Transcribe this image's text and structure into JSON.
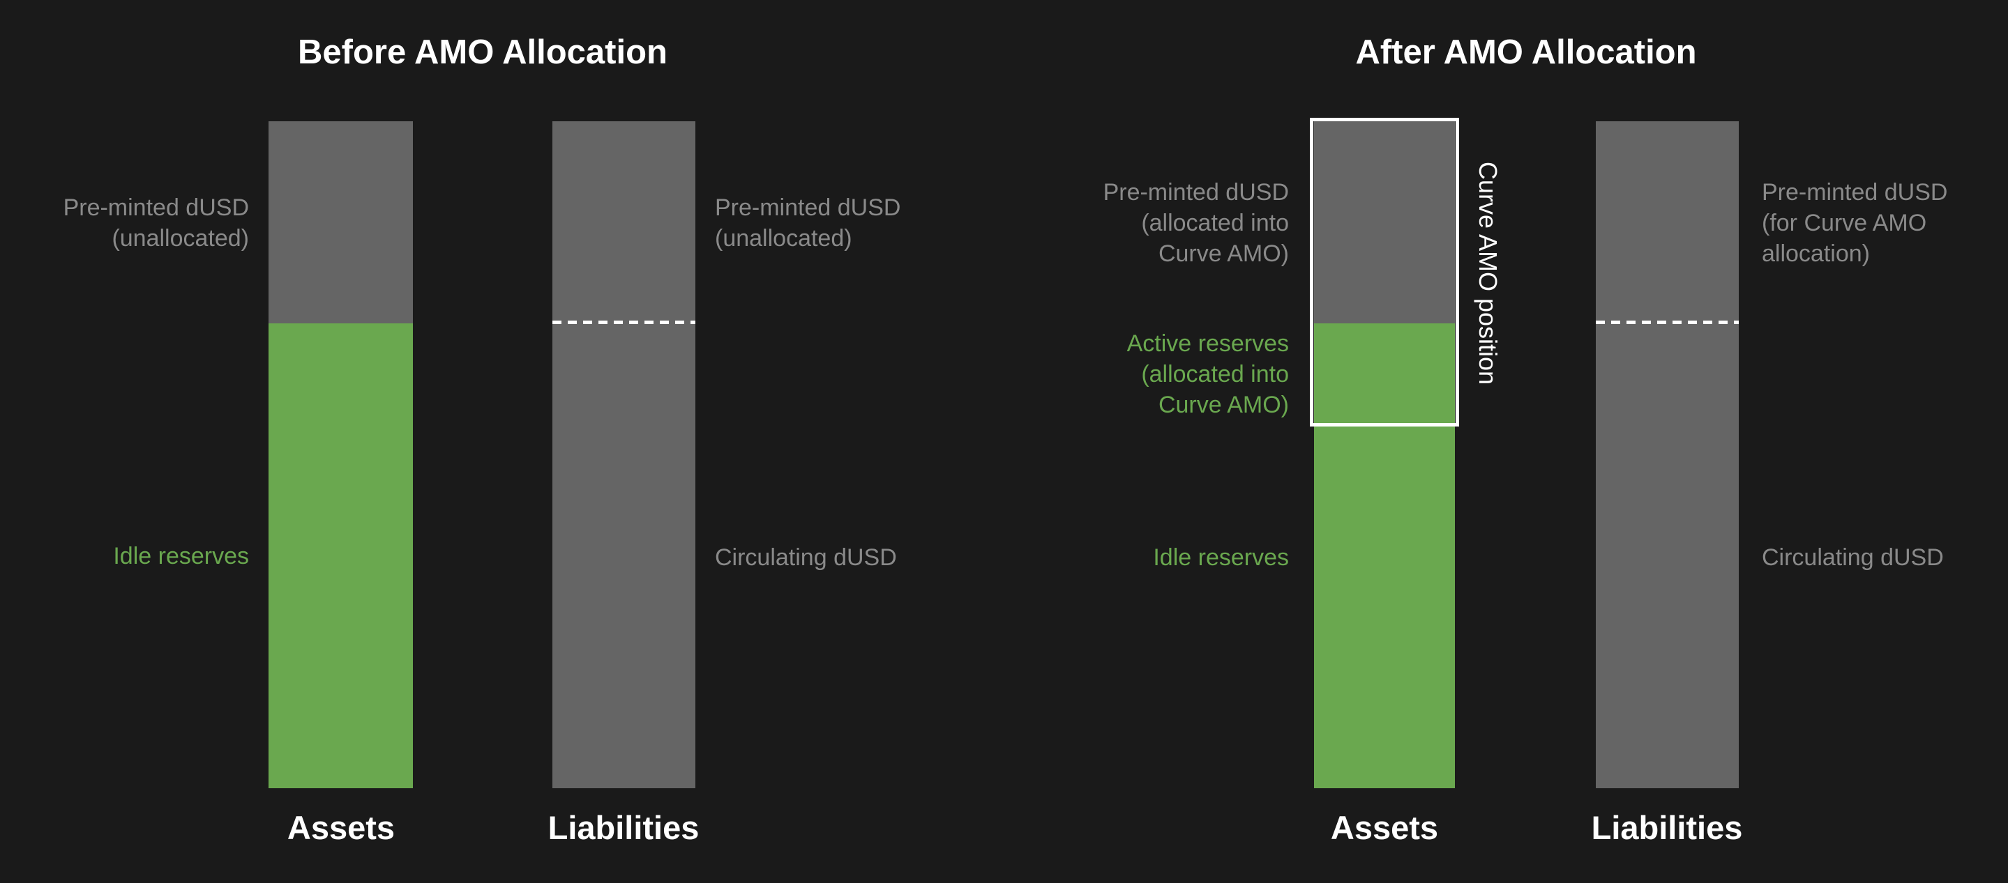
{
  "colors": {
    "background": "#1a1a1a",
    "bar_gray": "#656565",
    "bar_green": "#6aa84f",
    "muted_label_text": "#8a8a8a",
    "green_label_text": "#6aa84f",
    "white": "#ffffff"
  },
  "before": {
    "title": "Before AMO Allocation",
    "assets_bar": {
      "axis_label": "Assets",
      "preminted_label": [
        "Pre-minted dUSD",
        "(unallocated)"
      ],
      "idle_label": "Idle reserves",
      "segments": [
        {
          "name": "Pre-minted dUSD (unallocated)",
          "share_pct": 30,
          "color": "#656565"
        },
        {
          "name": "Idle reserves",
          "share_pct": 70,
          "color": "#6aa84f"
        }
      ]
    },
    "liabilities_bar": {
      "axis_label": "Liabilities",
      "preminted_label": [
        "Pre-minted dUSD",
        "(unallocated)"
      ],
      "circulating_label": "Circulating dUSD",
      "divider": "dashed-white-line at 30% from top",
      "segments": [
        {
          "name": "Pre-minted dUSD (unallocated)",
          "share_pct": 30,
          "color": "#656565"
        },
        {
          "name": "Circulating dUSD",
          "share_pct": 70,
          "color": "#656565"
        }
      ]
    }
  },
  "after": {
    "title": "After AMO Allocation",
    "assets_bar": {
      "axis_label": "Assets",
      "preminted_label": [
        "Pre-minted dUSD",
        "(allocated into",
        "Curve AMO)"
      ],
      "active_label": [
        "Active reserves",
        "(allocated into",
        "Curve AMO)"
      ],
      "idle_label": "Idle reserves",
      "curve_box_label": "Curve AMO position",
      "segments": [
        {
          "name": "Pre-minted dUSD (allocated into Curve AMO)",
          "share_pct": 30,
          "color": "#656565",
          "in_curve_amo_box": true
        },
        {
          "name": "Active reserves (allocated into Curve AMO)",
          "share_pct": 15,
          "color": "#6aa84f",
          "in_curve_amo_box": true
        },
        {
          "name": "Idle reserves",
          "share_pct": 55,
          "color": "#6aa84f",
          "in_curve_amo_box": false
        }
      ]
    },
    "liabilities_bar": {
      "axis_label": "Liabilities",
      "preminted_label": [
        "Pre-minted dUSD",
        "(for Curve AMO",
        "allocation)"
      ],
      "circulating_label": "Circulating dUSD",
      "divider": "dashed-white-line at 30% from top",
      "segments": [
        {
          "name": "Pre-minted dUSD (for Curve AMO allocation)",
          "share_pct": 30,
          "color": "#656565"
        },
        {
          "name": "Circulating dUSD",
          "share_pct": 70,
          "color": "#656565"
        }
      ]
    }
  }
}
